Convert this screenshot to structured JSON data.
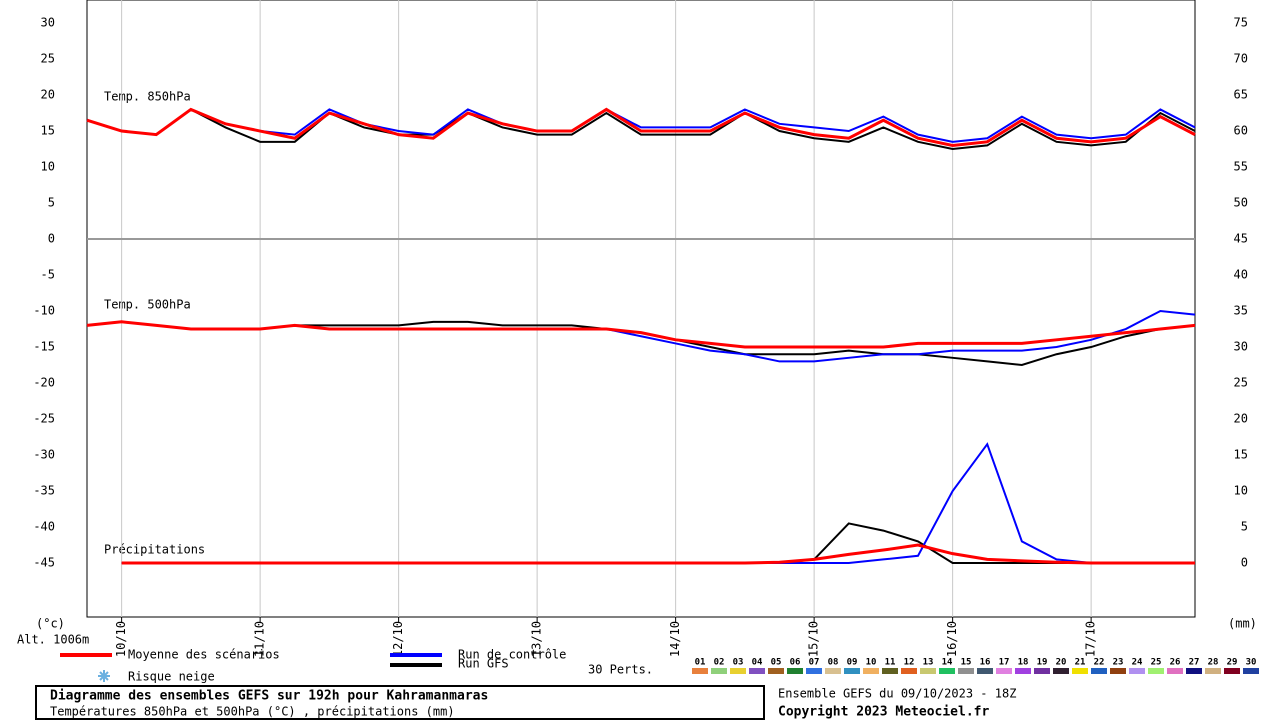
{
  "chart_data": {
    "type": "line",
    "unit_left": "(°c)",
    "altitude": "Alt. 1006m",
    "unit_right": "(mm)",
    "panel_labels": {
      "temp850": "Temp. 850hPa",
      "temp500": "Temp. 500hPa",
      "precip": "Précipitations"
    },
    "x": [
      0,
      6,
      12,
      18,
      24,
      30,
      36,
      42,
      48,
      54,
      60,
      66,
      72,
      78,
      84,
      90,
      96,
      102,
      108,
      114,
      120,
      126,
      132,
      138,
      144,
      150,
      156,
      162,
      168,
      174,
      180,
      186,
      192
    ],
    "xlim": [
      0,
      192
    ],
    "xticks": [
      {
        "value": 6,
        "label": "10/10"
      },
      {
        "value": 30,
        "label": "11/10"
      },
      {
        "value": 54,
        "label": "12/10"
      },
      {
        "value": 78,
        "label": "13/10"
      },
      {
        "value": 102,
        "label": "14/10"
      },
      {
        "value": 126,
        "label": "15/10"
      },
      {
        "value": 150,
        "label": "16/10"
      },
      {
        "value": 174,
        "label": "17/10"
      }
    ],
    "ylim": [
      -52.5,
      33.2
    ],
    "yticks": [
      30,
      25,
      20,
      15,
      10,
      5,
      0,
      -5,
      -10,
      -15,
      -20,
      -25,
      -30,
      -35,
      -40,
      -45
    ],
    "y2lim": [
      -7.5,
      78.2
    ],
    "y2ticks": [
      75,
      70,
      65,
      60,
      55,
      50,
      45,
      40,
      35,
      30,
      25,
      20,
      15,
      10,
      5,
      0
    ],
    "grid": true,
    "series": [
      {
        "name": "Moyenne des scénarios",
        "color": "#ff0000",
        "temp850": [
          16.5,
          15,
          14.5,
          18,
          16,
          15,
          14,
          17.5,
          16,
          14.5,
          14,
          17.5,
          16,
          15,
          15,
          18,
          15,
          15,
          15,
          17.5,
          15.5,
          14.5,
          14,
          16.5,
          14,
          13,
          13.5,
          16.5,
          14,
          13.5,
          14,
          17,
          14.5
        ],
        "temp500": [
          -12,
          -11.5,
          -12,
          -12.5,
          -12.5,
          -12.5,
          -12,
          -12.5,
          -12.5,
          -12.5,
          -12.5,
          -12.5,
          -12.5,
          -12.5,
          -12.5,
          -12.5,
          -13,
          -14,
          -14.5,
          -15,
          -15,
          -15,
          -15,
          -15,
          -14.5,
          -14.5,
          -14.5,
          -14.5,
          -14,
          -13.5,
          -13,
          -12.5,
          -12
        ],
        "precip": [
          null,
          0,
          0,
          0,
          0,
          0,
          0,
          0,
          0,
          0,
          0,
          0,
          0,
          0,
          0,
          0,
          0,
          0,
          0,
          0,
          0.1,
          0.5,
          1.2,
          1.8,
          2.5,
          1.3,
          0.5,
          0.3,
          0.1,
          0,
          0,
          0,
          0
        ]
      },
      {
        "name": "Run de contrôle",
        "color": "#0000ff",
        "temp850": [
          16.5,
          15,
          14.5,
          18,
          16,
          15,
          14.5,
          18,
          16,
          15,
          14.5,
          18,
          16,
          15,
          15,
          18,
          15.5,
          15.5,
          15.5,
          18,
          16,
          15.5,
          15,
          17,
          14.5,
          13.5,
          14,
          17,
          14.5,
          14,
          14.5,
          18,
          15.5
        ],
        "temp500": [
          -12,
          -11.5,
          -12,
          -12.5,
          -12.5,
          -12.5,
          -12,
          -12.5,
          -12.5,
          -12.5,
          -12.5,
          -12.5,
          -12.5,
          -12.5,
          -12.5,
          -12.5,
          -13.5,
          -14.5,
          -15.5,
          -16,
          -17,
          -17,
          -16.5,
          -16,
          -16,
          -15.5,
          -15.5,
          -15.5,
          -15,
          -14,
          -12.5,
          -10,
          -10.5
        ],
        "precip": [
          null,
          0,
          0,
          0,
          0,
          0,
          0,
          0,
          0,
          0,
          0,
          0,
          0,
          0,
          0,
          0,
          0,
          0,
          0,
          0,
          0,
          0,
          0,
          0.5,
          1,
          10,
          16.5,
          3,
          0.5,
          0,
          0,
          0,
          0
        ]
      },
      {
        "name": "Run GFS",
        "color": "#000000",
        "temp850": [
          16.5,
          15,
          14.5,
          18,
          15.5,
          13.5,
          13.5,
          17.5,
          15.5,
          14.5,
          14.5,
          17.5,
          15.5,
          14.5,
          14.5,
          17.5,
          14.5,
          14.5,
          14.5,
          17.5,
          15,
          14,
          13.5,
          15.5,
          13.5,
          12.5,
          13,
          16,
          13.5,
          13,
          13.5,
          17.5,
          15
        ],
        "temp500": [
          -12,
          -11.5,
          -12,
          -12.5,
          -12.5,
          -12.5,
          -12,
          -12,
          -12,
          -12,
          -11.5,
          -11.5,
          -12,
          -12,
          -12,
          -12.5,
          -13,
          -14,
          -15,
          -16,
          -16,
          -16,
          -15.5,
          -16,
          -16,
          -16.5,
          -17,
          -17.5,
          -16,
          -15,
          -13.5,
          -12.5,
          -12
        ],
        "precip": [
          null,
          0,
          0,
          0,
          0,
          0,
          0,
          0,
          0,
          0,
          0,
          0,
          0,
          0,
          0,
          0,
          0,
          0,
          0,
          0,
          0,
          0.5,
          5.5,
          4.5,
          3,
          0,
          0,
          0,
          0,
          0,
          0,
          0,
          0
        ]
      }
    ],
    "snow_label": "Risque neige",
    "perturbations": {
      "label": "30 Perts.",
      "members": [
        {
          "name": "01",
          "color": "#e8803c"
        },
        {
          "name": "02",
          "color": "#8fd07a"
        },
        {
          "name": "03",
          "color": "#e8d030"
        },
        {
          "name": "04",
          "color": "#8050c0"
        },
        {
          "name": "05",
          "color": "#a06020"
        },
        {
          "name": "06",
          "color": "#208030"
        },
        {
          "name": "07",
          "color": "#3070e0"
        },
        {
          "name": "08",
          "color": "#d8c090"
        },
        {
          "name": "09",
          "color": "#3090c0"
        },
        {
          "name": "10",
          "color": "#f0b060"
        },
        {
          "name": "11",
          "color": "#606020"
        },
        {
          "name": "12",
          "color": "#e06020"
        },
        {
          "name": "13",
          "color": "#c8c870"
        },
        {
          "name": "14",
          "color": "#20c060"
        },
        {
          "name": "15",
          "color": "#909090"
        },
        {
          "name": "16",
          "color": "#405870"
        },
        {
          "name": "17",
          "color": "#e080e0"
        },
        {
          "name": "18",
          "color": "#a040e0"
        },
        {
          "name": "19",
          "color": "#7030a0"
        },
        {
          "name": "20",
          "color": "#302030"
        },
        {
          "name": "21",
          "color": "#f0e000"
        },
        {
          "name": "22",
          "color": "#2060c0"
        },
        {
          "name": "23",
          "color": "#904010"
        },
        {
          "name": "24",
          "color": "#b090f0"
        },
        {
          "name": "25",
          "color": "#a0f070"
        },
        {
          "name": "26",
          "color": "#e070c0"
        },
        {
          "name": "27",
          "color": "#101080"
        },
        {
          "name": "28",
          "color": "#d0b080"
        },
        {
          "name": "29",
          "color": "#800020"
        },
        {
          "name": "30",
          "color": "#2040a0"
        }
      ]
    },
    "title": "Diagramme des ensembles GEFS sur 192h pour Kahramanmaras",
    "subtitle": "Températures 850hPa et 500hPa (°C) , précipitations (mm)",
    "run_info": "Ensemble GEFS du 09/10/2023 - 18Z",
    "copyright": "Copyright 2023 Meteociel.fr"
  }
}
